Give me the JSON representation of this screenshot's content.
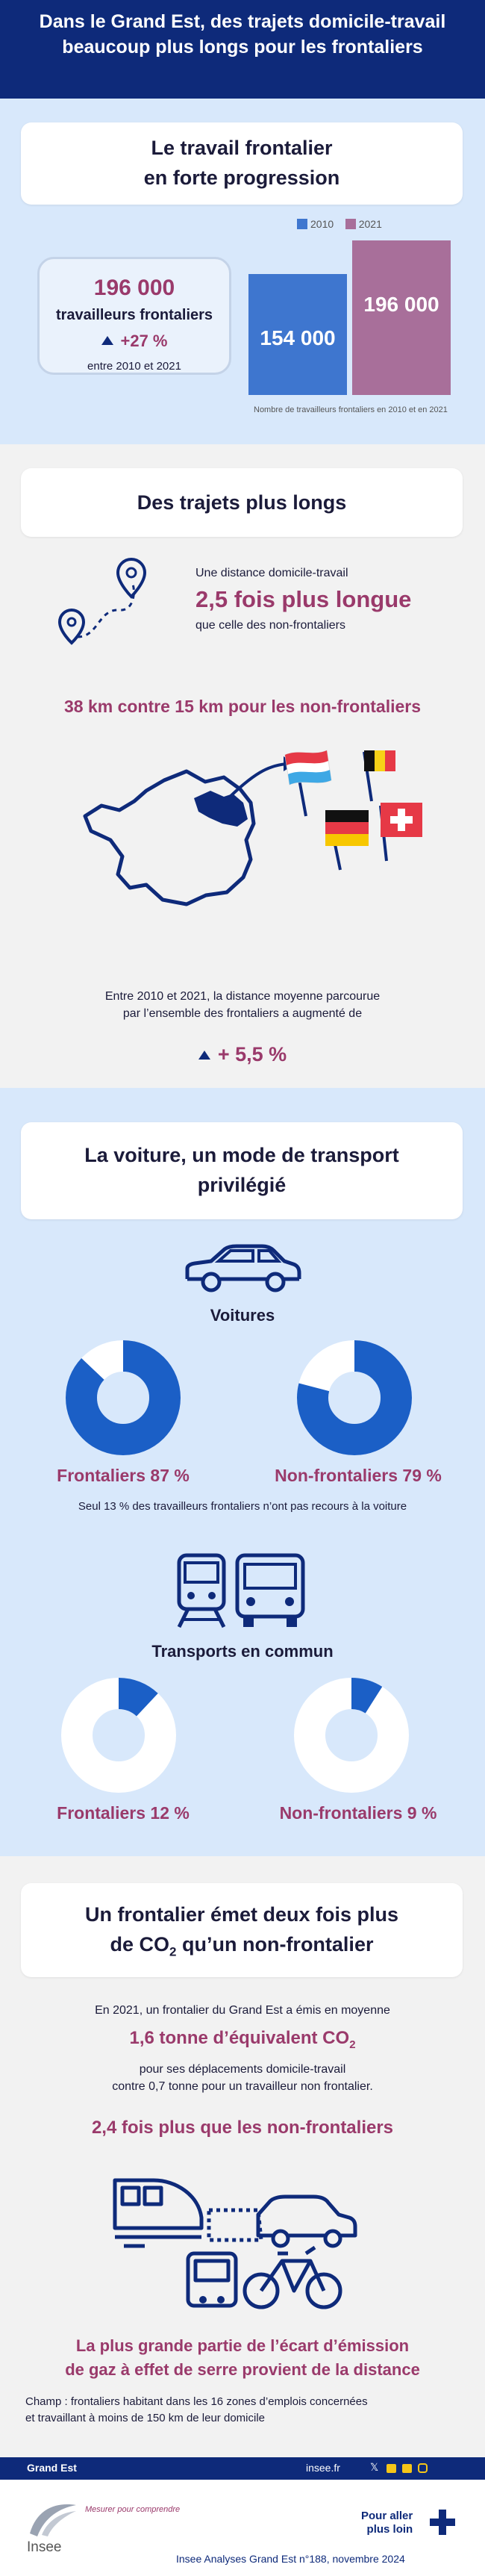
{
  "header": {
    "title": "Dans le Grand Est, des trajets domicile-travail beaucoup plus longs pour les frontaliers"
  },
  "colors": {
    "navy": "#0e2a7a",
    "purple": "#9a3a6b",
    "blue": "#1b5fc6",
    "mauve": "#a86f9a",
    "light_blue": "#d8e8fb",
    "grey": "#f2f2f2"
  },
  "section1": {
    "title_line1": "Le travail frontalier",
    "title_line2": "en forte progression",
    "stat_value": "196 000",
    "stat_label": "travailleurs frontaliers",
    "stat_change": "+27 %",
    "stat_period": "entre 2010 et 2021",
    "chart_note": "Nombre de travailleurs frontaliers en 2010 et en 2021"
  },
  "chart_data": {
    "type": "bar",
    "categories": [
      "2010",
      "2021"
    ],
    "values": [
      154000,
      196000
    ],
    "value_labels": [
      "154 000",
      "196 000"
    ],
    "colors": [
      "#3e76cf",
      "#a86f9a"
    ],
    "title": "",
    "xlabel": "",
    "ylabel": "",
    "ylim": [
      0,
      220000
    ],
    "legend": "top"
  },
  "section2": {
    "title": "Des trajets plus longs",
    "distance_intro": "Une distance domicile-travail",
    "distance_ratio": "2,5 fois plus longue",
    "distance_compare": "que celle des non-frontaliers",
    "km_compare": "38 km contre 15 km pour les non-frontaliers",
    "evolution_line1": "Entre 2010 et 2021, la distance moyenne parcourue",
    "evolution_line2": "par l’ensemble des frontaliers a augmenté de",
    "evolution_value": "+ 5,5 %",
    "icons": [
      "route-pin-icon",
      "france-map-icon",
      "luxembourg-flag-icon",
      "belgium-flag-icon",
      "germany-flag-icon",
      "switzerland-flag-icon"
    ]
  },
  "section3": {
    "title_line1": "La voiture, un mode de transport",
    "title_line2": "privilégié",
    "cars_heading": "Voitures",
    "car_frontaliers": "Frontaliers 87 %",
    "car_non_frontaliers": "Non-frontaliers 79 %",
    "car_frontaliers_share": 87,
    "car_non_frontaliers_share": 79,
    "car_note": "Seul 13 % des travailleurs frontaliers n’ont pas recours à la voiture",
    "transit_heading": "Transports en commun",
    "transit_frontaliers": "Frontaliers 12 %",
    "transit_non_frontaliers": "Non-frontaliers 9 %",
    "transit_frontaliers_share": 12,
    "transit_non_frontaliers_share": 9
  },
  "section4": {
    "title_line1": "Un frontalier émet deux fois plus",
    "title_line2_pre": "de CO",
    "title_line2_sub": "2",
    "title_line2_post": " qu’un non-frontalier",
    "intro": "En 2021, un frontalier du Grand Est a émis en moyenne",
    "emission_value_pre": "1,6 tonne d’équivalent CO",
    "emission_value_sub": "2",
    "trip_line1": "pour ses déplacements domicile-travail",
    "trip_line2": "contre 0,7 tonne pour un travailleur non frontalier.",
    "ratio": "2,4 fois plus que les non-frontaliers",
    "conclusion_line1": "La plus grande partie de l’écart d’émission",
    "conclusion_line2": "de gaz à effet de serre provient de la distance",
    "scope_line1": "Champ : frontaliers habitant dans les 16 zones d’emplois concernées",
    "scope_line2": "et travaillant à moins de 150 km de leur domicile"
  },
  "footer": {
    "region": "Grand Est",
    "site": "insee.fr",
    "logo_text": "Insee",
    "tagline": "Mesurer pour comprendre",
    "more_line1": "Pour aller",
    "more_line2": "plus loin",
    "publication": "Insee Analyses Grand Est n°188, novembre 2024"
  }
}
